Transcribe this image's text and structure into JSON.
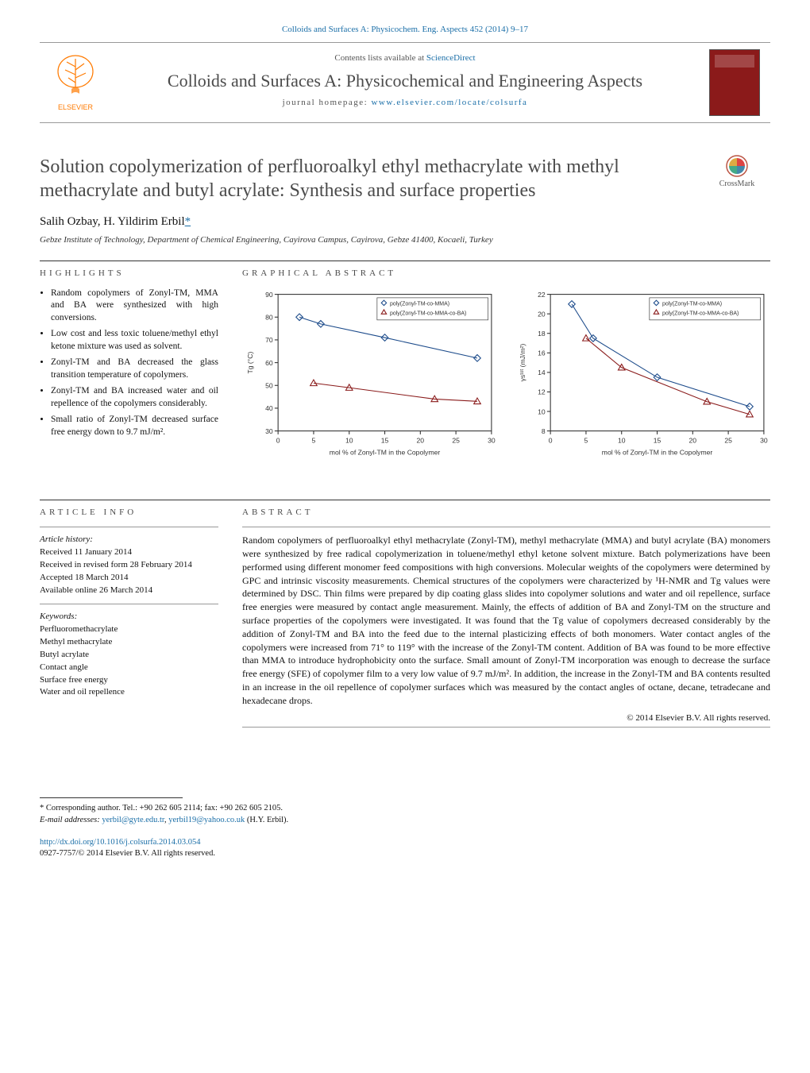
{
  "header_citation": "Colloids and Surfaces A: Physicochem. Eng. Aspects 452 (2014) 9–17",
  "masthead": {
    "contents_prefix": "Contents lists available at ",
    "contents_link": "ScienceDirect",
    "journal_name": "Colloids and Surfaces A: Physicochemical and Engineering Aspects",
    "homepage_prefix": "journal homepage: ",
    "homepage_link": "www.elsevier.com/locate/colsurfa",
    "elsevier_text": "ELSEVIER",
    "elsevier_color": "#ff7a00",
    "cover_color": "#8b1a1a"
  },
  "title": "Solution copolymerization of perfluoroalkyl ethyl methacrylate with methyl methacrylate and butyl acrylate: Synthesis and surface properties",
  "crossmark_label": "CrossMark",
  "authors_html": "Salih Ozbay, H. Yildirim Erbil",
  "author_marker": "*",
  "affiliation": "Gebze Institute of Technology, Department of Chemical Engineering, Cayirova Campus, Cayirova, Gebze 41400, Kocaeli, Turkey",
  "highlights_head": "HIGHLIGHTS",
  "highlights": [
    "Random copolymers of Zonyl-TM, MMA and BA were synthesized with high conversions.",
    "Low cost and less toxic toluene/methyl ethyl ketone mixture was used as solvent.",
    "Zonyl-TM and BA decreased the glass transition temperature of copolymers.",
    "Zonyl-TM and BA increased water and oil repellence of the copolymers considerably.",
    "Small ratio of Zonyl-TM decreased surface free energy down to 9.7 mJ/m²."
  ],
  "ga_head": "GRAPHICAL ABSTRACT",
  "chart_left": {
    "type": "scatter-line",
    "xlabel": "mol % of Zonyl-TM in the Copolymer",
    "ylabel": "Tg (°C)",
    "xlim": [
      0,
      30
    ],
    "xtick_step": 5,
    "ylim": [
      30,
      90
    ],
    "ytick_step": 10,
    "series": [
      {
        "name": "poly(Zonyl-TM-co-MMA)",
        "marker": "diamond",
        "color": "#1b4a8a",
        "points": [
          [
            3,
            80
          ],
          [
            6,
            77
          ],
          [
            15,
            71
          ],
          [
            28,
            62
          ]
        ]
      },
      {
        "name": "poly(Zonyl-TM-co-MMA-co-BA)",
        "marker": "triangle",
        "color": "#8a1b1b",
        "points": [
          [
            5,
            51
          ],
          [
            10,
            49
          ],
          [
            22,
            44
          ],
          [
            28,
            43
          ]
        ]
      }
    ],
    "font_size": 8,
    "axis_color": "#333",
    "tick_color": "#333",
    "bg": "#ffffff"
  },
  "chart_right": {
    "type": "scatter-line",
    "xlabel": "mol % of Zonyl-TM in the Copolymer",
    "ylabel": "γsᵗᵒᵗ (mJ/m²)",
    "xlim": [
      0,
      30
    ],
    "xtick_step": 5,
    "ylim": [
      8,
      22
    ],
    "ytick_step": 2,
    "series": [
      {
        "name": "poly(Zonyl-TM-co-MMA)",
        "marker": "diamond",
        "color": "#1b4a8a",
        "points": [
          [
            3,
            21
          ],
          [
            6,
            17.5
          ],
          [
            15,
            13.5
          ],
          [
            28,
            10.5
          ]
        ]
      },
      {
        "name": "poly(Zonyl-TM-co-MMA-co-BA)",
        "marker": "triangle",
        "color": "#8a1b1b",
        "points": [
          [
            5,
            17.5
          ],
          [
            10,
            14.5
          ],
          [
            22,
            11
          ],
          [
            28,
            9.7
          ]
        ]
      }
    ],
    "font_size": 8,
    "axis_color": "#333",
    "tick_color": "#333",
    "bg": "#ffffff"
  },
  "article_info_head": "ARTICLE INFO",
  "article_history_head": "Article history:",
  "article_history": [
    "Received 11 January 2014",
    "Received in revised form 28 February 2014",
    "Accepted 18 March 2014",
    "Available online 26 March 2014"
  ],
  "keywords_head": "Keywords:",
  "keywords": [
    "Perfluoromethacrylate",
    "Methyl methacrylate",
    "Butyl acrylate",
    "Contact angle",
    "Surface free energy",
    "Water and oil repellence"
  ],
  "abstract_head": "ABSTRACT",
  "abstract": "Random copolymers of perfluoroalkyl ethyl methacrylate (Zonyl-TM), methyl methacrylate (MMA) and butyl acrylate (BA) monomers were synthesized by free radical copolymerization in toluene/methyl ethyl ketone solvent mixture. Batch polymerizations have been performed using different monomer feed compositions with high conversions. Molecular weights of the copolymers were determined by GPC and intrinsic viscosity measurements. Chemical structures of the copolymers were characterized by ¹H-NMR and Tg values were determined by DSC. Thin films were prepared by dip coating glass slides into copolymer solutions and water and oil repellence, surface free energies were measured by contact angle measurement. Mainly, the effects of addition of BA and Zonyl-TM on the structure and surface properties of the copolymers were investigated. It was found that the Tg value of copolymers decreased considerably by the addition of Zonyl-TM and BA into the feed due to the internal plasticizing effects of both monomers. Water contact angles of the copolymers were increased from 71° to 119° with the increase of the Zonyl-TM content. Addition of BA was found to be more effective than MMA to introduce hydrophobicity onto the surface. Small amount of Zonyl-TM incorporation was enough to decrease the surface free energy (SFE) of copolymer film to a very low value of 9.7 mJ/m². In addition, the increase in the Zonyl-TM and BA contents resulted in an increase in the oil repellence of copolymer surfaces which was measured by the contact angles of octane, decane, tetradecane and hexadecane drops.",
  "copyright": "© 2014 Elsevier B.V. All rights reserved.",
  "corr_author": "* Corresponding author. Tel.: +90 262 605 2114; fax: +90 262 605 2105.",
  "email_label": "E-mail addresses: ",
  "emails": [
    "yerbil@gyte.edu.tr",
    "yerbil19@yahoo.co.uk"
  ],
  "email_suffix": " (H.Y. Erbil).",
  "doi_link": "http://dx.doi.org/10.1016/j.colsurfa.2014.03.054",
  "issn_line": "0927-7757/© 2014 Elsevier B.V. All rights reserved."
}
